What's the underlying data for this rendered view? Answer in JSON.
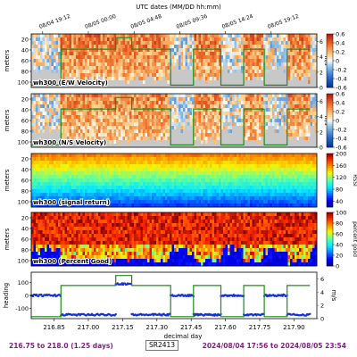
{
  "figure": {
    "top_axis_title": "UTC dates (MM/DD hh:mm)",
    "top_ticks": [
      {
        "label": "08/04 19:12",
        "x": 216.8
      },
      {
        "label": "08/05 00:00",
        "x": 217.0
      },
      {
        "label": "08/05 04:48",
        "x": 217.2
      },
      {
        "label": "08/05 09:36",
        "x": 217.4
      },
      {
        "label": "08/05 14:24",
        "x": 217.6
      },
      {
        "label": "08/05 19:12",
        "x": 217.8
      }
    ],
    "xlim": [
      216.75,
      218.0
    ],
    "bottom_ticks": [
      216.85,
      217.0,
      217.15,
      217.3,
      217.45,
      217.6,
      217.75,
      217.9
    ],
    "bottom_tick_labels": [
      "216.85",
      "217.00",
      "217.15",
      "217.30",
      "217.45",
      "217.60",
      "217.75",
      "217.90"
    ],
    "xlabel": "decimal day",
    "colors": {
      "speed_line": "#1f8a1f",
      "heading_points": "#1530d8",
      "bottom_fill": "#c8c8c8",
      "frame": "#000000"
    }
  },
  "chart_data": [
    {
      "type": "heatmap",
      "panel_label": "wh300 (E/W Velocity)",
      "ylabel": "meters",
      "yticks": [
        "20",
        "40",
        "60",
        "80",
        "100"
      ],
      "ylim": [
        110,
        10
      ],
      "colorbar": {
        "ticks": [
          "0.6",
          "0.4",
          "0.2",
          "0",
          "-0.2",
          "-0.4",
          "-0.6"
        ],
        "range": [
          -0.6,
          0.6
        ],
        "colormap": "red-white-blue"
      },
      "overlay_axis": {
        "ticks": [
          "6",
          "4",
          "2",
          "0"
        ],
        "label": "m/s"
      },
      "mean_velocity": 0.35
    },
    {
      "type": "heatmap",
      "panel_label": "wh300 (N/S Velocity)",
      "ylabel": "meters",
      "yticks": [
        "20",
        "40",
        "60",
        "80",
        "100"
      ],
      "ylim": [
        110,
        10
      ],
      "colorbar": {
        "ticks": [
          "0.6",
          "0.4",
          "0.2",
          "0",
          "-0.2",
          "-0.4",
          "-0.6"
        ],
        "range": [
          -0.6,
          0.6
        ],
        "colormap": "red-white-blue"
      },
      "overlay_axis": {
        "ticks": [
          "6",
          "4",
          "2",
          "0"
        ],
        "label": "m/s"
      },
      "mean_velocity": 0.3
    },
    {
      "type": "heatmap",
      "panel_label": "wh300 (signal return)",
      "ylabel": "meters",
      "yticks": [
        "20",
        "40",
        "60",
        "80",
        "100"
      ],
      "ylim": [
        110,
        10
      ],
      "colorbar": {
        "ticks": [
          "200",
          "160",
          "120",
          "80",
          "40"
        ],
        "range": [
          20,
          200
        ],
        "label": "RSSI",
        "colormap": "jet"
      }
    },
    {
      "type": "heatmap",
      "panel_label": "wh300 (Percent Good)",
      "ylabel": "meters",
      "yticks": [
        "20",
        "40",
        "60",
        "80",
        "100"
      ],
      "ylim": [
        110,
        10
      ],
      "colorbar": {
        "ticks": [
          "100",
          "80",
          "60",
          "40",
          "20",
          "0"
        ],
        "range": [
          0,
          100
        ],
        "label": "percent good",
        "colormap": "jet"
      }
    },
    {
      "type": "scatter",
      "panel_label": "",
      "ylabel": "heading",
      "yticks": [
        "100",
        "0",
        "-100"
      ],
      "ylim": [
        -180,
        180
      ],
      "right_axis": {
        "ticks": [
          "6",
          "4",
          "2",
          "0"
        ],
        "label": "m/s",
        "range": [
          0,
          7
        ]
      },
      "series": [
        {
          "name": "heading",
          "segments": [
            {
              "x": [
                216.75,
                216.88
              ],
              "y": 0
            },
            {
              "x": [
                216.88,
                217.12
              ],
              "y": -150
            },
            {
              "x": [
                217.12,
                217.19
              ],
              "y": 90
            },
            {
              "x": [
                217.19,
                217.36
              ],
              "y": -150
            },
            {
              "x": [
                217.36,
                217.46
              ],
              "y": 0
            },
            {
              "x": [
                217.46,
                217.58
              ],
              "y": -150
            },
            {
              "x": [
                217.58,
                217.68
              ],
              "y": 0
            },
            {
              "x": [
                217.68,
                217.77
              ],
              "y": -150
            },
            {
              "x": [
                217.77,
                217.87
              ],
              "y": 0
            },
            {
              "x": [
                217.87,
                217.97
              ],
              "y": -150
            }
          ]
        },
        {
          "name": "speed",
          "segments": [
            {
              "x": [
                216.75,
                216.88
              ],
              "y": 0.3
            },
            {
              "x": [
                216.88,
                217.12
              ],
              "y": 5.0
            },
            {
              "x": [
                217.12,
                217.19
              ],
              "y": 6.5
            },
            {
              "x": [
                217.19,
                217.36
              ],
              "y": 5.0
            },
            {
              "x": [
                217.36,
                217.46
              ],
              "y": 0.3
            },
            {
              "x": [
                217.46,
                217.58
              ],
              "y": 5.0
            },
            {
              "x": [
                217.58,
                217.68
              ],
              "y": 0.3
            },
            {
              "x": [
                217.68,
                217.77
              ],
              "y": 5.0
            },
            {
              "x": [
                217.77,
                217.87
              ],
              "y": 0.3
            },
            {
              "x": [
                217.87,
                217.97
              ],
              "y": 5.0
            }
          ]
        }
      ]
    }
  ],
  "footer": {
    "left": "216.75 to 218.0 (1.25 days)",
    "middle": "SR2413",
    "right": "2024/08/04 17:56 to 2024/08/05 23:54"
  }
}
